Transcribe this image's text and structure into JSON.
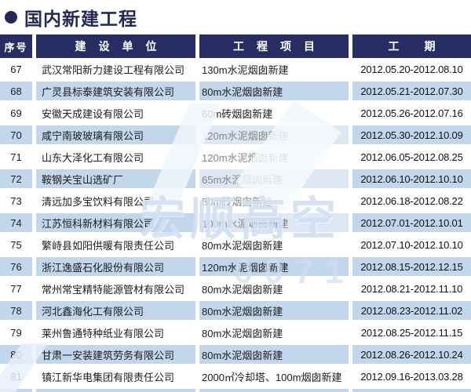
{
  "page": {
    "title": "国内新建工程"
  },
  "table": {
    "columns": {
      "no": "序号",
      "company": "建设单位",
      "project": "工程项目",
      "period": "工期"
    },
    "rows": [
      {
        "no": "67",
        "company": "武汉常阳新力建设工程有限公司",
        "project": "130m水泥烟囱新建",
        "period": "2012.05.20-2012.08.10"
      },
      {
        "no": "68",
        "company": "广灵县标泰建筑安装有限公司",
        "project": "80m水泥烟囱新建",
        "period": "2012.05.21-2012.07.30"
      },
      {
        "no": "69",
        "company": "安徽天成建设有限公司",
        "project": "60m砖烟囱新建",
        "period": "2012.05.26-2012.07.16"
      },
      {
        "no": "70",
        "company": "咸宁南玻玻璃有限公司",
        "project": "120m水泥烟囱新建",
        "period": "2012.05.30-2012.10.09"
      },
      {
        "no": "71",
        "company": "山东大泽化工有限公司",
        "project": "120m水泥烟囱新建",
        "period": "2012.06.05-2012.08.25"
      },
      {
        "no": "72",
        "company": "鞍钢关宝山选矿厂",
        "project": "65m水泥烟囱新建",
        "period": "2012.06.10-2012.10.10"
      },
      {
        "no": "73",
        "company": "清远加多宝饮料有限公司",
        "project": "80m砖烟囱新建",
        "period": "2012.06.18-2012.08.22"
      },
      {
        "no": "74",
        "company": "江苏恒科新材料有限公司",
        "project": "100m水泥烟囱新建",
        "period": "2012.07.01-2012.10.01"
      },
      {
        "no": "75",
        "company": "繁峙县如阳供暖有限责任公司",
        "project": "80m水泥烟囱新建",
        "period": "2012.07.10-2012.10.10"
      },
      {
        "no": "76",
        "company": "浙江逸盛石化股份有限公司",
        "project": "120m水泥烟囱新建",
        "period": "2012.08.15-2012.12.15"
      },
      {
        "no": "77",
        "company": "常州常宝精特能源管材有限公司",
        "project": "80m水泥烟囱新建",
        "period": "2012.08.21-2012.11.10"
      },
      {
        "no": "78",
        "company": "河北鑫海化工有限公司",
        "project": "80m水泥烟囱新建",
        "period": "2012.08.23-2012.11.02"
      },
      {
        "no": "79",
        "company": "莱州鲁通特种纸业有限公司",
        "project": "80m水泥烟囱新建",
        "period": "2012.08.25-2012.11.15"
      },
      {
        "no": "80",
        "company": "甘肃一安装建筑劳务有限公司",
        "project": "80m水泥烟囱新建",
        "period": "2012.08.26-2012.10.24"
      },
      {
        "no": "81",
        "company": "镇江新华电集团有限责任公司",
        "project": "2000㎡冷却塔、100m烟囱新建",
        "period": "2012.09.16-2013.03.28"
      }
    ]
  },
  "watermark": {
    "brand": "宏顺高空",
    "digits": "0071"
  },
  "colors": {
    "navy": "#282e64",
    "title_navy": "#232858",
    "band_blue": "#c2d6ec",
    "text": "#1c1c1c"
  }
}
